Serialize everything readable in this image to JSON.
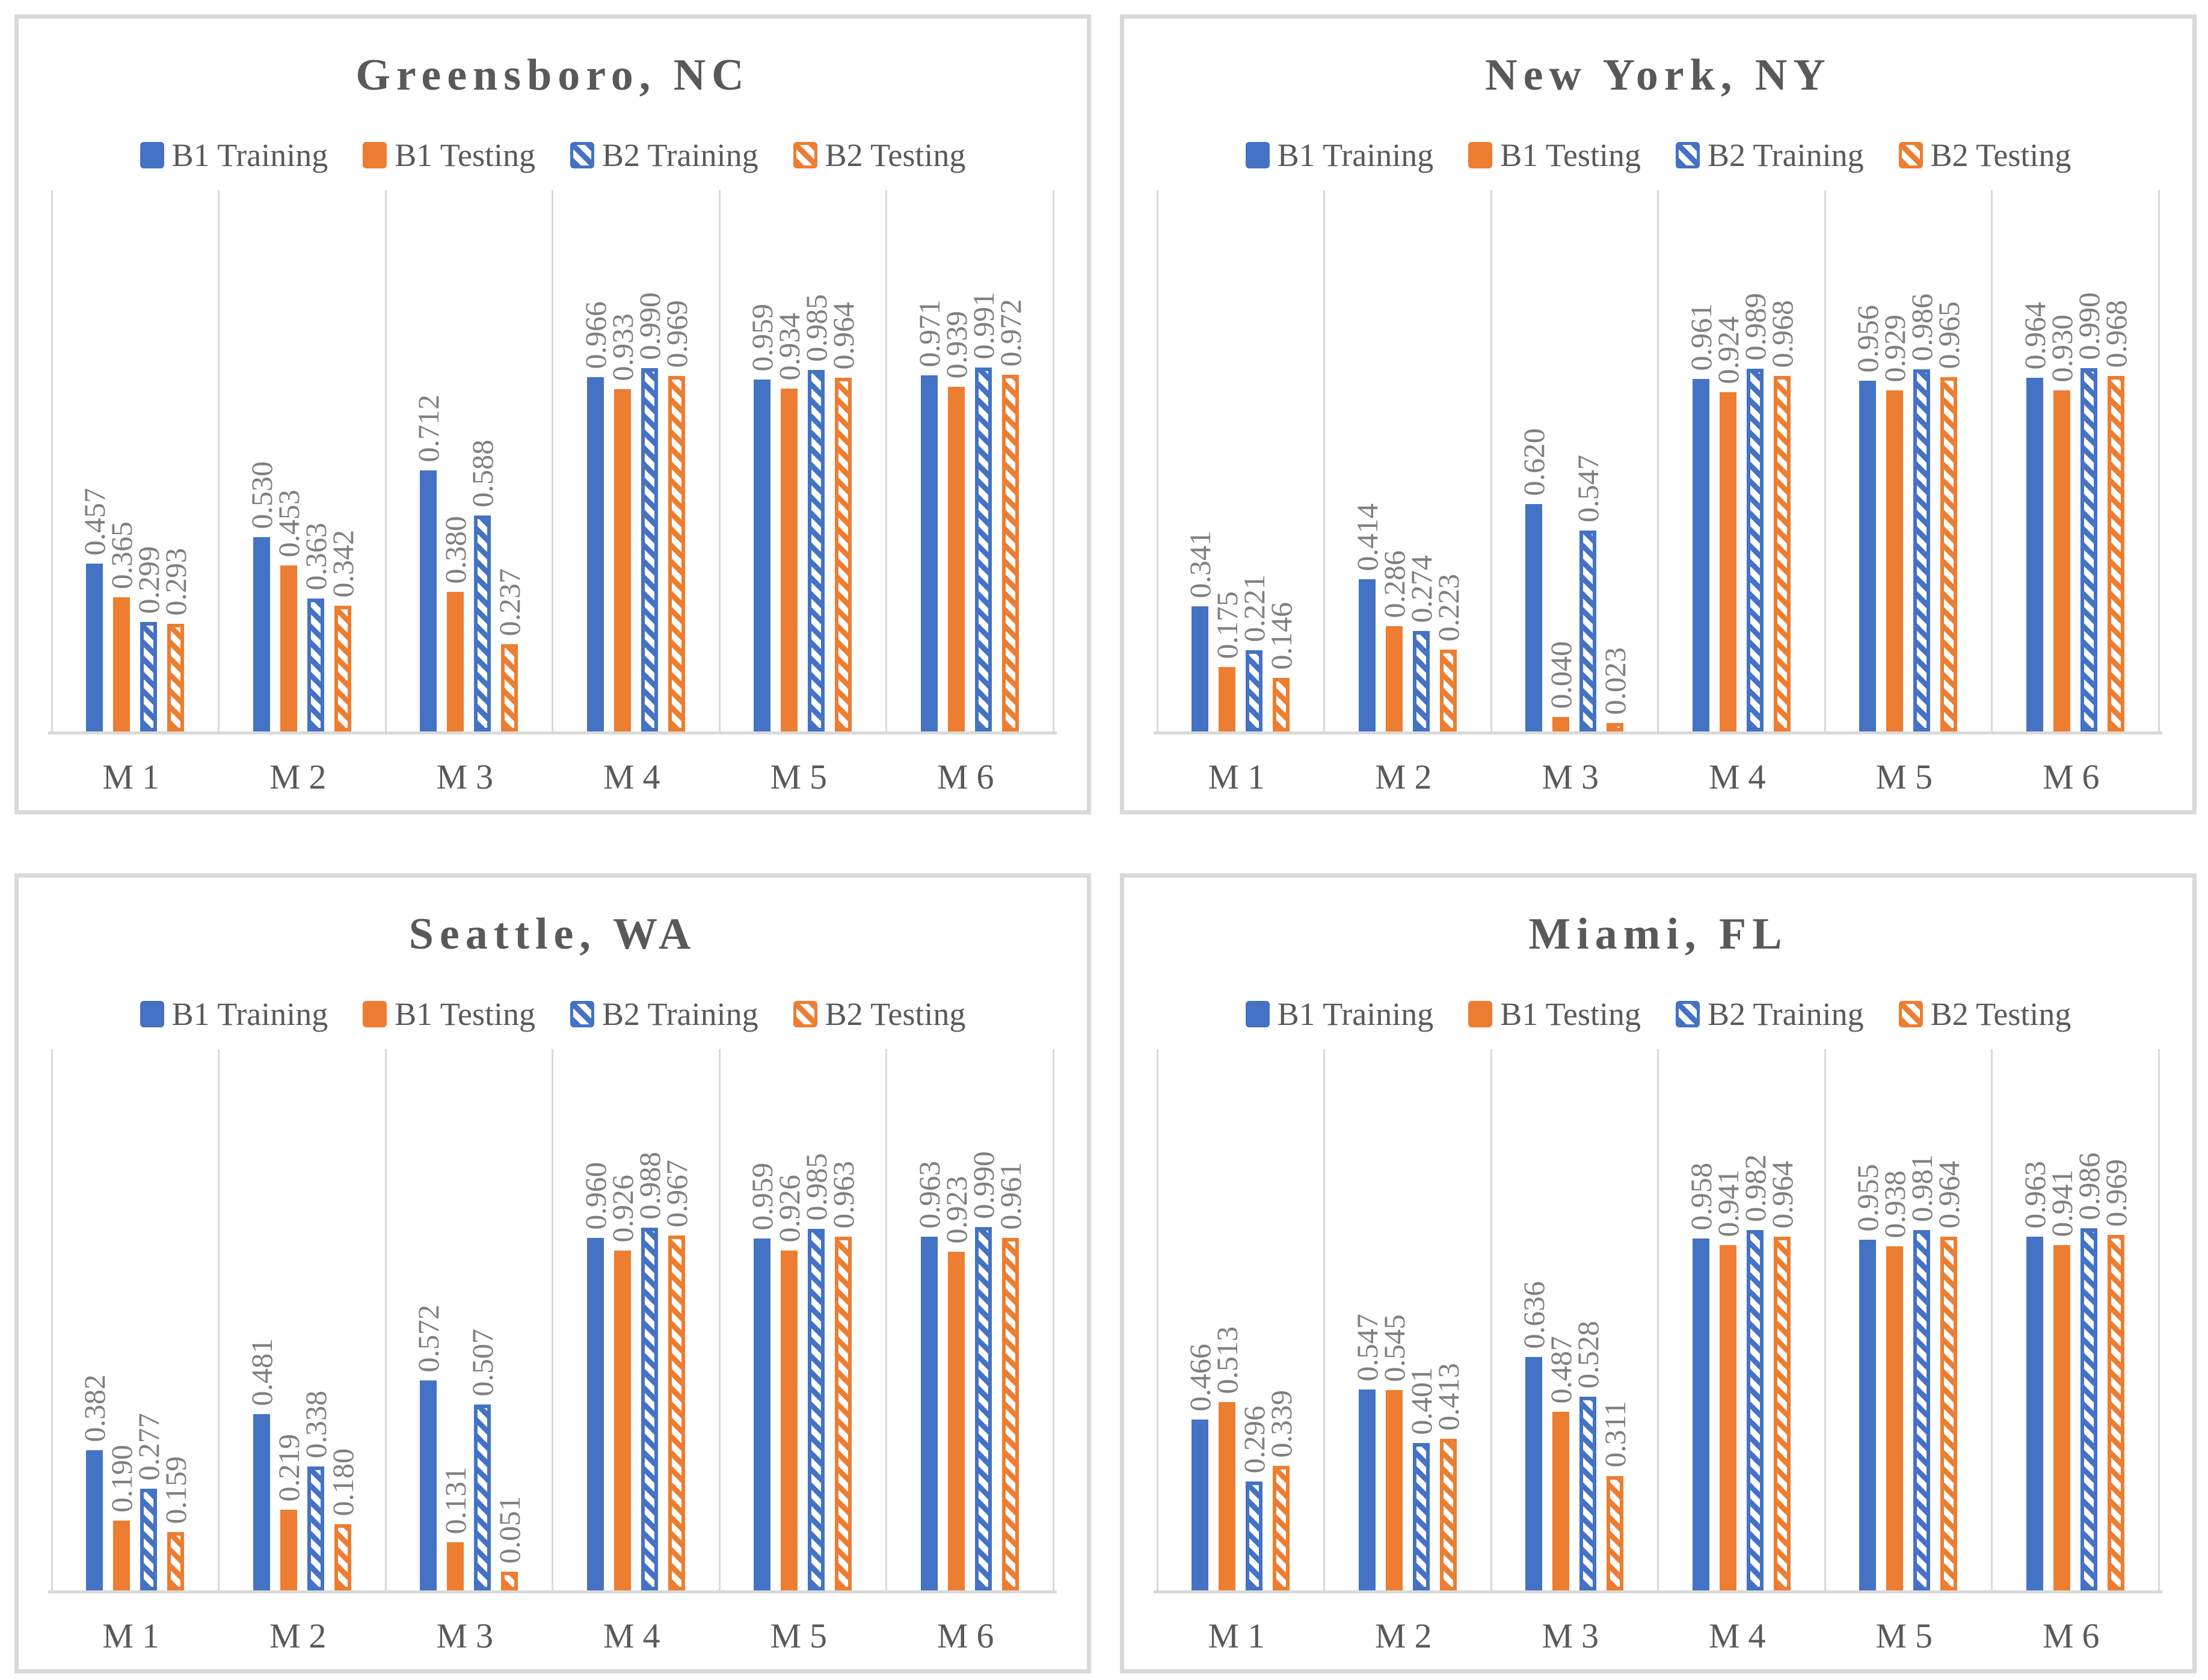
{
  "colors": {
    "blue": "#4472C4",
    "orange": "#ED7D31",
    "grid": "#D9D9D9",
    "panel_border": "#D9D9D9",
    "title_text": "#595959",
    "legend_text": "#595959",
    "category_text": "#595959",
    "value_label_text": "#7F7F7F",
    "hatch_background": "#FFFFFF"
  },
  "legend_labels": [
    "B1 Training",
    "B1 Testing",
    "B2 Training",
    "B2 Testing"
  ],
  "chart_data": [
    {
      "type": "bar",
      "title": "Greensboro, NC",
      "categories": [
        "M1",
        "M2",
        "M3",
        "M4",
        "M5",
        "M6"
      ],
      "series": [
        {
          "name": "B1 Training",
          "style": "solid",
          "color_key": "blue",
          "values": [
            0.457,
            0.53,
            0.712,
            0.966,
            0.959,
            0.971
          ]
        },
        {
          "name": "B1 Testing",
          "style": "solid",
          "color_key": "orange",
          "values": [
            0.365,
            0.453,
            0.38,
            0.933,
            0.934,
            0.939
          ]
        },
        {
          "name": "B2 Training",
          "style": "hatched",
          "color_key": "blue",
          "values": [
            0.299,
            0.363,
            0.588,
            0.99,
            0.985,
            0.991
          ]
        },
        {
          "name": "B2 Testing",
          "style": "hatched",
          "color_key": "orange",
          "values": [
            0.293,
            0.342,
            0.237,
            0.969,
            0.964,
            0.972
          ]
        }
      ],
      "ylim": [
        0,
        1.47
      ],
      "grid": "vertical category separators only",
      "legend_position": "top",
      "value_labels": "rotated 90deg above bars, 3 decimals"
    },
    {
      "type": "bar",
      "title": "New York, NY",
      "categories": [
        "M1",
        "M2",
        "M3",
        "M4",
        "M5",
        "M6"
      ],
      "series": [
        {
          "name": "B1 Training",
          "style": "solid",
          "color_key": "blue",
          "values": [
            0.341,
            0.414,
            0.62,
            0.961,
            0.956,
            0.964
          ]
        },
        {
          "name": "B1 Testing",
          "style": "solid",
          "color_key": "orange",
          "values": [
            0.175,
            0.286,
            0.04,
            0.924,
            0.929,
            0.93
          ]
        },
        {
          "name": "B2 Training",
          "style": "hatched",
          "color_key": "blue",
          "values": [
            0.221,
            0.274,
            0.547,
            0.989,
            0.986,
            0.99
          ]
        },
        {
          "name": "B2 Testing",
          "style": "hatched",
          "color_key": "orange",
          "values": [
            0.146,
            0.223,
            0.023,
            0.968,
            0.965,
            0.968
          ]
        }
      ],
      "ylim": [
        0,
        1.47
      ],
      "grid": "vertical category separators only",
      "legend_position": "top",
      "value_labels": "rotated 90deg above bars, 3 decimals"
    },
    {
      "type": "bar",
      "title": "Seattle, WA",
      "categories": [
        "M1",
        "M2",
        "M3",
        "M4",
        "M5",
        "M6"
      ],
      "series": [
        {
          "name": "B1 Training",
          "style": "solid",
          "color_key": "blue",
          "values": [
            0.382,
            0.481,
            0.572,
            0.96,
            0.959,
            0.963
          ]
        },
        {
          "name": "B1 Testing",
          "style": "solid",
          "color_key": "orange",
          "values": [
            0.19,
            0.219,
            0.131,
            0.926,
            0.926,
            0.923
          ]
        },
        {
          "name": "B2 Training",
          "style": "hatched",
          "color_key": "blue",
          "values": [
            0.277,
            0.338,
            0.507,
            0.988,
            0.985,
            0.99
          ]
        },
        {
          "name": "B2 Testing",
          "style": "hatched",
          "color_key": "orange",
          "values": [
            0.159,
            0.18,
            0.051,
            0.967,
            0.963,
            0.961
          ]
        }
      ],
      "ylim": [
        0,
        1.47
      ],
      "grid": "vertical category separators only",
      "legend_position": "top",
      "value_labels": "rotated 90deg above bars, 3 decimals"
    },
    {
      "type": "bar",
      "title": "Miami, FL",
      "categories": [
        "M1",
        "M2",
        "M3",
        "M4",
        "M5",
        "M6"
      ],
      "series": [
        {
          "name": "B1 Training",
          "style": "solid",
          "color_key": "blue",
          "values": [
            0.466,
            0.547,
            0.636,
            0.958,
            0.955,
            0.963
          ]
        },
        {
          "name": "B1 Testing",
          "style": "solid",
          "color_key": "orange",
          "values": [
            0.513,
            0.545,
            0.487,
            0.941,
            0.938,
            0.941
          ]
        },
        {
          "name": "B2 Training",
          "style": "hatched",
          "color_key": "blue",
          "values": [
            0.296,
            0.401,
            0.528,
            0.982,
            0.981,
            0.986
          ]
        },
        {
          "name": "B2 Testing",
          "style": "hatched",
          "color_key": "orange",
          "values": [
            0.339,
            0.413,
            0.311,
            0.964,
            0.964,
            0.969
          ]
        }
      ],
      "ylim": [
        0,
        1.47
      ],
      "grid": "vertical category separators only",
      "legend_position": "top",
      "value_labels": "rotated 90deg above bars, 3 decimals"
    }
  ]
}
